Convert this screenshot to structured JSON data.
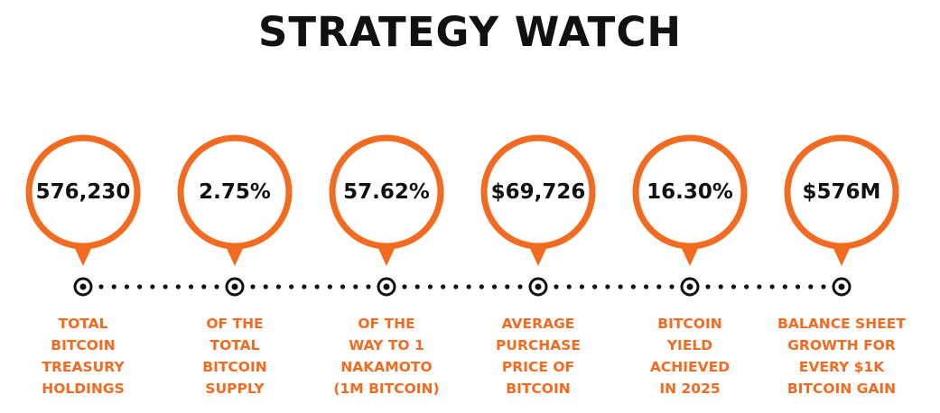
{
  "title": "STRATEGY WATCH",
  "colors": {
    "accent": "#f26b21",
    "text": "#111111",
    "background": "#ffffff"
  },
  "metrics": [
    {
      "value": "576,230",
      "caption": [
        "TOTAL",
        "BITCOIN",
        "TREASURY",
        "HOLDINGS"
      ]
    },
    {
      "value": "2.75%",
      "caption": [
        "OF THE",
        "TOTAL",
        "BITCOIN",
        "SUPPLY"
      ]
    },
    {
      "value": "57.62%",
      "caption": [
        "OF THE",
        "WAY TO 1",
        "NAKAMOTO",
        "(1M BITCOIN)"
      ]
    },
    {
      "value": "$69,726",
      "caption": [
        "AVERAGE",
        "PURCHASE",
        "PRICE OF",
        "BITCOIN"
      ]
    },
    {
      "value": "16.30%",
      "caption": [
        "BITCOIN",
        "YIELD",
        "ACHIEVED",
        "IN 2025"
      ]
    },
    {
      "value": "$576M",
      "caption": [
        "BALANCE SHEET",
        "GROWTH FOR",
        "EVERY $1K",
        "BITCOIN GAIN"
      ]
    }
  ]
}
